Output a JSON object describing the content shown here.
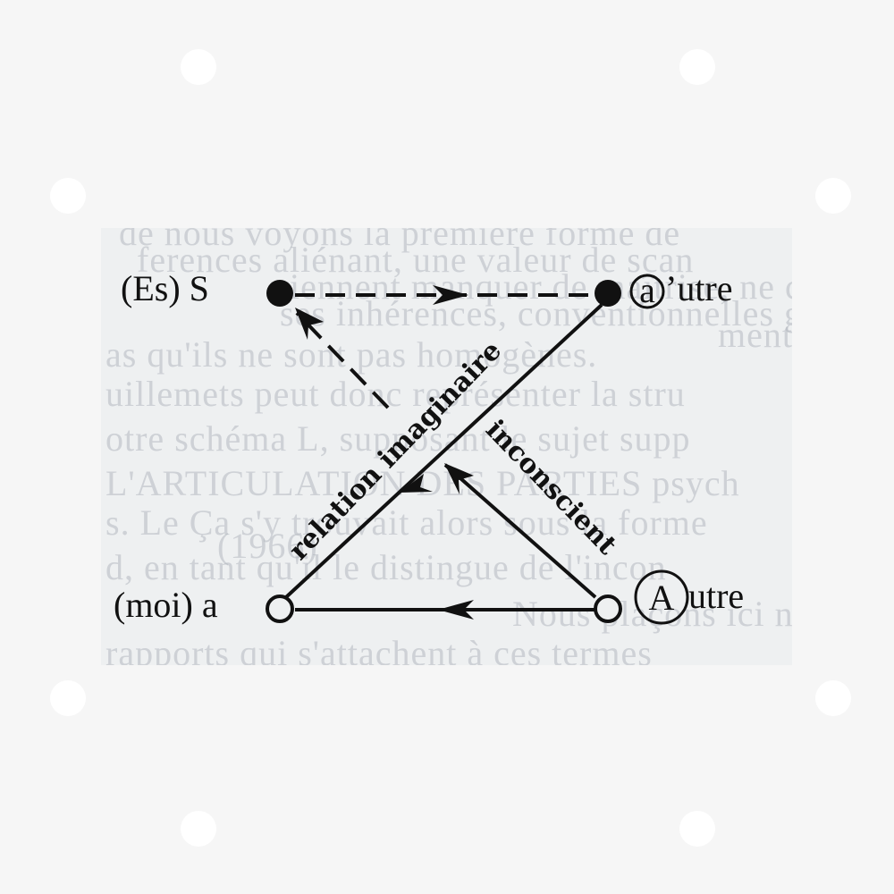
{
  "nodes": {
    "es_s": {
      "label": "(Es) S"
    },
    "autre_small": {
      "circled": "a",
      "suffix": "’utre"
    },
    "moi_a": {
      "label": "(moi) a"
    },
    "autre_big": {
      "circled": "A",
      "suffix": "utre"
    }
  },
  "edges": {
    "imaginary_relation": {
      "label": "relation imaginaire"
    },
    "unconscious": {
      "label": "inconscient"
    }
  },
  "background_text": [
    "de nous voyons la première forme de",
    "ferences aliénant, une valeur de scan",
    "viennent manquer de maîtrise, ne co",
    "ses inhérences, conventionnelles gram",
    "ment.",
    "as qu'ils ne sont pas homogènes.",
    "uillemets peut donc représenter la stru",
    "otre schéma L, supposant le sujet supp",
    "L'ARTICULATION DES PARTIES psych",
    "s. Le Ça s'y trouvait alors sous la forme",
    "(1966)",
    "d, en tant qu'il le distingue de l'incon",
    "Nous plaçons ici notre problème",
    "rapports qui s'attachent à ces termes"
  ],
  "colors": {
    "ink": "#111111",
    "paper": "#eef0f1",
    "background": "#f6f6f6",
    "faded_text": "#b4b9c0"
  }
}
